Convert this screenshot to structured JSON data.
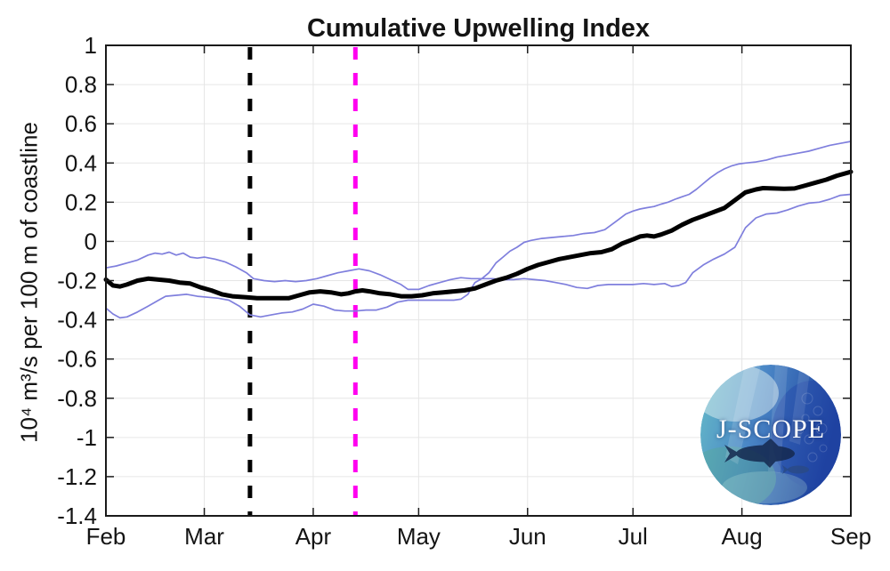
{
  "logo": {
    "text": "J-SCOPE"
  },
  "chart_data": {
    "type": "line",
    "title": "Cumulative Upwelling Index",
    "xlabel": "",
    "ylabel": "10⁴ m³/s per 100 m of coastline",
    "x_unit": "days after Feb 1",
    "xlim_days": [
      0,
      212
    ],
    "ylim": [
      -1.4,
      1
    ],
    "grid": true,
    "legend": "none",
    "x_ticks": {
      "days": [
        0,
        28,
        59,
        89,
        120,
        150,
        181,
        212
      ],
      "labels": [
        "Feb",
        "Mar",
        "Apr",
        "May",
        "Jun",
        "Jul",
        "Aug",
        "Sep"
      ]
    },
    "y_ticks": {
      "values": [
        1,
        0.8,
        0.6,
        0.4,
        0.2,
        0,
        -0.2,
        -0.4,
        -0.6,
        -0.8,
        -1,
        -1.2,
        -1.4
      ],
      "labels": [
        "1",
        "0.8",
        "0.6",
        "0.4",
        "0.2",
        "0",
        "-0.2",
        "-0.4",
        "-0.6",
        "-0.8",
        "-1",
        "-1.2",
        "-1.4"
      ]
    },
    "colors": {
      "mean": "#000000",
      "ensemble": "#7f7fdd",
      "grid": "#e6e6e6",
      "axis": "#1a1a1a",
      "vline1": "#000000",
      "vline2": "#ff00f0"
    },
    "vlines": [
      {
        "name": "black-dashed-marker",
        "day": 41,
        "approx_date": "Mar 14",
        "color": "#000000"
      },
      {
        "name": "magenta-dashed-marker",
        "day": 71,
        "approx_date": "Apr 12",
        "color": "#ff00f0"
      }
    ],
    "series": [
      {
        "name": "ensemble-mean",
        "color": "#000000",
        "width": 5,
        "points": [
          [
            0,
            -0.195
          ],
          [
            2,
            -0.225
          ],
          [
            4,
            -0.23
          ],
          [
            6,
            -0.22
          ],
          [
            9,
            -0.2
          ],
          [
            12,
            -0.19
          ],
          [
            15,
            -0.195
          ],
          [
            18,
            -0.2
          ],
          [
            21,
            -0.21
          ],
          [
            24,
            -0.215
          ],
          [
            27,
            -0.235
          ],
          [
            30,
            -0.25
          ],
          [
            33,
            -0.27
          ],
          [
            36,
            -0.28
          ],
          [
            40,
            -0.285
          ],
          [
            43,
            -0.29
          ],
          [
            46,
            -0.29
          ],
          [
            49,
            -0.29
          ],
          [
            52,
            -0.29
          ],
          [
            55,
            -0.275
          ],
          [
            58,
            -0.26
          ],
          [
            61,
            -0.255
          ],
          [
            64,
            -0.26
          ],
          [
            67,
            -0.27
          ],
          [
            69,
            -0.265
          ],
          [
            71,
            -0.255
          ],
          [
            73,
            -0.25
          ],
          [
            75,
            -0.255
          ],
          [
            78,
            -0.265
          ],
          [
            81,
            -0.27
          ],
          [
            84,
            -0.28
          ],
          [
            87,
            -0.28
          ],
          [
            90,
            -0.275
          ],
          [
            93,
            -0.265
          ],
          [
            96,
            -0.26
          ],
          [
            99,
            -0.255
          ],
          [
            102,
            -0.25
          ],
          [
            105,
            -0.24
          ],
          [
            108,
            -0.22
          ],
          [
            111,
            -0.2
          ],
          [
            114,
            -0.185
          ],
          [
            117,
            -0.165
          ],
          [
            120,
            -0.14
          ],
          [
            123,
            -0.12
          ],
          [
            126,
            -0.105
          ],
          [
            129,
            -0.09
          ],
          [
            132,
            -0.08
          ],
          [
            135,
            -0.07
          ],
          [
            138,
            -0.06
          ],
          [
            141,
            -0.055
          ],
          [
            144,
            -0.04
          ],
          [
            147,
            -0.01
          ],
          [
            150,
            0.01
          ],
          [
            152,
            0.025
          ],
          [
            154,
            0.03
          ],
          [
            156,
            0.025
          ],
          [
            158,
            0.035
          ],
          [
            161,
            0.055
          ],
          [
            164,
            0.085
          ],
          [
            167,
            0.11
          ],
          [
            170,
            0.13
          ],
          [
            173,
            0.15
          ],
          [
            176,
            0.17
          ],
          [
            179,
            0.21
          ],
          [
            182,
            0.25
          ],
          [
            185,
            0.265
          ],
          [
            187,
            0.272
          ],
          [
            190,
            0.27
          ],
          [
            193,
            0.268
          ],
          [
            196,
            0.27
          ],
          [
            199,
            0.285
          ],
          [
            202,
            0.3
          ],
          [
            205,
            0.315
          ],
          [
            208,
            0.335
          ],
          [
            212,
            0.355
          ]
        ]
      },
      {
        "name": "ensemble-member-a",
        "color": "#7f7fdd",
        "width": 1.7,
        "points": [
          [
            0,
            -0.135
          ],
          [
            3,
            -0.125
          ],
          [
            6,
            -0.11
          ],
          [
            9,
            -0.095
          ],
          [
            12,
            -0.07
          ],
          [
            14,
            -0.06
          ],
          [
            16,
            -0.065
          ],
          [
            18,
            -0.055
          ],
          [
            20,
            -0.07
          ],
          [
            22,
            -0.06
          ],
          [
            24,
            -0.08
          ],
          [
            26,
            -0.085
          ],
          [
            28,
            -0.08
          ],
          [
            31,
            -0.09
          ],
          [
            34,
            -0.105
          ],
          [
            37,
            -0.13
          ],
          [
            40,
            -0.16
          ],
          [
            42,
            -0.19
          ],
          [
            45,
            -0.2
          ],
          [
            48,
            -0.205
          ],
          [
            51,
            -0.2
          ],
          [
            54,
            -0.205
          ],
          [
            57,
            -0.2
          ],
          [
            60,
            -0.19
          ],
          [
            63,
            -0.175
          ],
          [
            66,
            -0.16
          ],
          [
            69,
            -0.15
          ],
          [
            72,
            -0.14
          ],
          [
            75,
            -0.15
          ],
          [
            78,
            -0.17
          ],
          [
            81,
            -0.195
          ],
          [
            84,
            -0.22
          ],
          [
            86,
            -0.245
          ],
          [
            89,
            -0.245
          ],
          [
            92,
            -0.225
          ],
          [
            95,
            -0.21
          ],
          [
            98,
            -0.195
          ],
          [
            101,
            -0.185
          ],
          [
            104,
            -0.19
          ],
          [
            107,
            -0.19
          ],
          [
            110,
            -0.19
          ],
          [
            113,
            -0.195
          ],
          [
            116,
            -0.195
          ],
          [
            119,
            -0.19
          ],
          [
            122,
            -0.195
          ],
          [
            125,
            -0.2
          ],
          [
            128,
            -0.21
          ],
          [
            131,
            -0.22
          ],
          [
            134,
            -0.235
          ],
          [
            137,
            -0.24
          ],
          [
            140,
            -0.225
          ],
          [
            143,
            -0.22
          ],
          [
            146,
            -0.22
          ],
          [
            150,
            -0.22
          ],
          [
            153,
            -0.215
          ],
          [
            156,
            -0.22
          ],
          [
            159,
            -0.215
          ],
          [
            161,
            -0.23
          ],
          [
            163,
            -0.225
          ],
          [
            165,
            -0.21
          ],
          [
            167,
            -0.16
          ],
          [
            170,
            -0.12
          ],
          [
            173,
            -0.09
          ],
          [
            176,
            -0.065
          ],
          [
            179,
            -0.03
          ],
          [
            182,
            0.07
          ],
          [
            185,
            0.12
          ],
          [
            188,
            0.14
          ],
          [
            191,
            0.145
          ],
          [
            194,
            0.16
          ],
          [
            197,
            0.18
          ],
          [
            200,
            0.195
          ],
          [
            203,
            0.2
          ],
          [
            206,
            0.215
          ],
          [
            209,
            0.235
          ],
          [
            212,
            0.24
          ]
        ]
      },
      {
        "name": "ensemble-member-b",
        "color": "#7f7fdd",
        "width": 1.7,
        "points": [
          [
            0,
            -0.34
          ],
          [
            2,
            -0.37
          ],
          [
            4,
            -0.39
          ],
          [
            6,
            -0.385
          ],
          [
            9,
            -0.36
          ],
          [
            12,
            -0.33
          ],
          [
            15,
            -0.3
          ],
          [
            17,
            -0.28
          ],
          [
            20,
            -0.275
          ],
          [
            23,
            -0.27
          ],
          [
            26,
            -0.28
          ],
          [
            29,
            -0.285
          ],
          [
            32,
            -0.29
          ],
          [
            35,
            -0.3
          ],
          [
            38,
            -0.33
          ],
          [
            41,
            -0.375
          ],
          [
            44,
            -0.385
          ],
          [
            47,
            -0.375
          ],
          [
            50,
            -0.365
          ],
          [
            53,
            -0.36
          ],
          [
            56,
            -0.345
          ],
          [
            59,
            -0.32
          ],
          [
            62,
            -0.33
          ],
          [
            65,
            -0.35
          ],
          [
            68,
            -0.355
          ],
          [
            71,
            -0.355
          ],
          [
            74,
            -0.35
          ],
          [
            77,
            -0.35
          ],
          [
            80,
            -0.335
          ],
          [
            83,
            -0.31
          ],
          [
            86,
            -0.3
          ],
          [
            89,
            -0.3
          ],
          [
            92,
            -0.3
          ],
          [
            95,
            -0.3
          ],
          [
            99,
            -0.3
          ],
          [
            101,
            -0.295
          ],
          [
            103,
            -0.27
          ],
          [
            105,
            -0.21
          ],
          [
            107,
            -0.19
          ],
          [
            109,
            -0.16
          ],
          [
            111,
            -0.11
          ],
          [
            113,
            -0.08
          ],
          [
            115,
            -0.05
          ],
          [
            117,
            -0.03
          ],
          [
            119,
            -0.005
          ],
          [
            121,
            0.005
          ],
          [
            124,
            0.015
          ],
          [
            127,
            0.02
          ],
          [
            130,
            0.025
          ],
          [
            133,
            0.03
          ],
          [
            136,
            0.04
          ],
          [
            139,
            0.045
          ],
          [
            142,
            0.06
          ],
          [
            145,
            0.1
          ],
          [
            148,
            0.14
          ],
          [
            150,
            0.155
          ],
          [
            152,
            0.165
          ],
          [
            154,
            0.172
          ],
          [
            156,
            0.178
          ],
          [
            158,
            0.19
          ],
          [
            160,
            0.2
          ],
          [
            162,
            0.215
          ],
          [
            164,
            0.228
          ],
          [
            166,
            0.24
          ],
          [
            168,
            0.265
          ],
          [
            170,
            0.295
          ],
          [
            172,
            0.325
          ],
          [
            174,
            0.35
          ],
          [
            176,
            0.37
          ],
          [
            178,
            0.385
          ],
          [
            180,
            0.395
          ],
          [
            182,
            0.4
          ],
          [
            185,
            0.405
          ],
          [
            188,
            0.415
          ],
          [
            191,
            0.43
          ],
          [
            194,
            0.44
          ],
          [
            197,
            0.45
          ],
          [
            200,
            0.46
          ],
          [
            203,
            0.475
          ],
          [
            206,
            0.49
          ],
          [
            209,
            0.5
          ],
          [
            212,
            0.51
          ]
        ]
      }
    ]
  }
}
